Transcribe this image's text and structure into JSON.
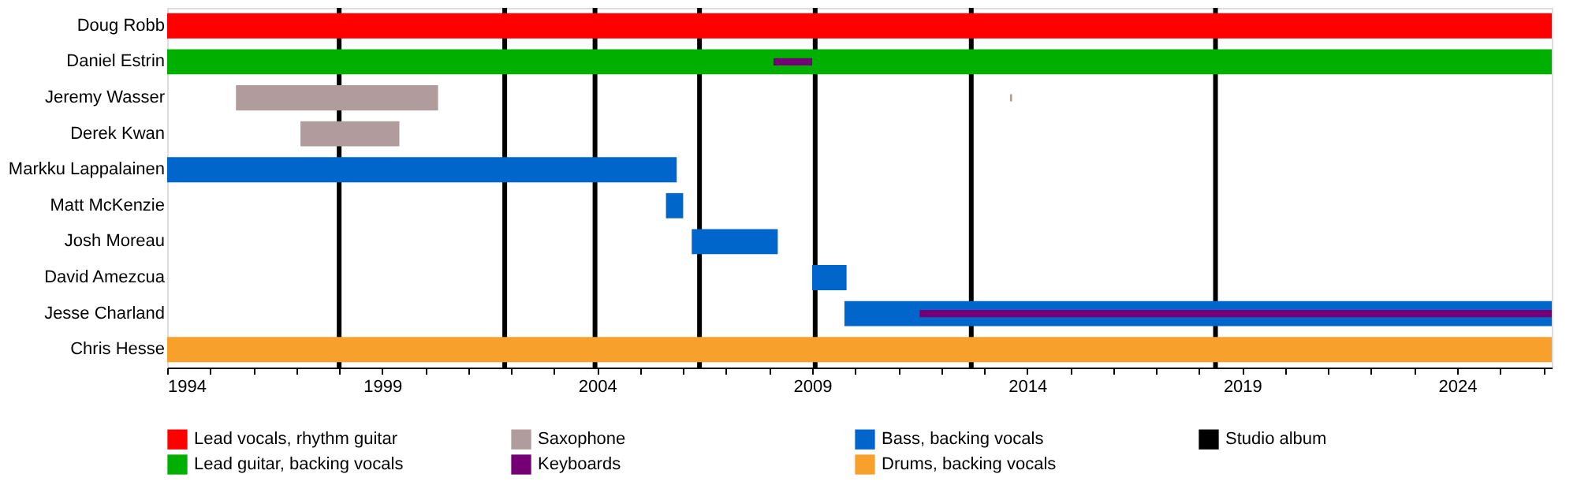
{
  "chart_data": {
    "type": "bar",
    "orientation": "horizontal",
    "categories": [
      "Doug Robb",
      "Daniel Estrin",
      "Jeremy Wasser",
      "Derek Kwan",
      "Markku Lappalainen",
      "Matt McKenzie",
      "Josh Moreau",
      "David Amezcua",
      "Jesse Charland",
      "Chris Hesse"
    ],
    "series": [
      {
        "name": "Lead vocals, rhythm guitar",
        "color": "#ff0000",
        "base": [
          1994,
          null,
          null,
          null,
          null,
          null,
          null,
          null,
          null,
          null
        ],
        "values": [
          32.2,
          null,
          null,
          null,
          null,
          null,
          null,
          null,
          null,
          null
        ]
      },
      {
        "name": "Lead guitar, backing vocals",
        "color": "#00b000",
        "base": [
          null,
          1994,
          null,
          null,
          null,
          null,
          null,
          null,
          null,
          null
        ],
        "values": [
          null,
          32.2,
          null,
          null,
          null,
          null,
          null,
          null,
          null,
          null
        ]
      },
      {
        "name": "Saxophone",
        "color": "#b09c9c",
        "base": [
          null,
          null,
          1995.6,
          1997.1,
          null,
          null,
          null,
          null,
          null,
          null
        ],
        "values": [
          null,
          null,
          4.7,
          2.3,
          null,
          null,
          null,
          null,
          null,
          null
        ]
      },
      {
        "color": "#b09c9c",
        "base": [
          null,
          null,
          2013.6,
          null,
          null,
          null,
          null,
          null,
          null,
          null
        ],
        "values": [
          null,
          null,
          0.05,
          null,
          null,
          null,
          null,
          null,
          null,
          null
        ]
      },
      {
        "name": "Keyboards",
        "color": "#750075",
        "base": [
          null,
          2008.1,
          null,
          null,
          null,
          null,
          null,
          null,
          2011.5,
          null
        ],
        "values": [
          null,
          0.9,
          null,
          null,
          null,
          null,
          null,
          null,
          14.7,
          null
        ]
      },
      {
        "name": "Bass, backing vocals",
        "color": "#0066cc",
        "base": [
          null,
          null,
          null,
          null,
          1994,
          2005.6,
          2006.2,
          2009.0,
          2009.75,
          null
        ],
        "values": [
          null,
          null,
          null,
          null,
          11.85,
          0.4,
          2.0,
          0.8,
          16.45,
          null
        ]
      },
      {
        "name": "Drums, backing vocals",
        "color": "#f7a12c",
        "base": [
          null,
          null,
          null,
          null,
          null,
          null,
          null,
          null,
          null,
          1994
        ],
        "values": [
          null,
          null,
          null,
          null,
          null,
          null,
          null,
          null,
          null,
          32.2
        ]
      }
    ],
    "ref_lines": [
      {
        "axis": "x",
        "value": 1998.0,
        "label": "Studio album",
        "color": "#000000"
      },
      {
        "axis": "x",
        "value": 2001.85,
        "color": "#000000"
      },
      {
        "axis": "x",
        "value": 2003.95,
        "color": "#000000"
      },
      {
        "axis": "x",
        "value": 2006.38,
        "color": "#000000"
      },
      {
        "axis": "x",
        "value": 2009.07,
        "color": "#000000"
      },
      {
        "axis": "x",
        "value": 2012.7,
        "color": "#000000"
      },
      {
        "axis": "x",
        "value": 2018.38,
        "color": "#000000"
      }
    ],
    "xlim": [
      1994,
      2026.2
    ],
    "xticks": [
      1994,
      {
        "value": 1995,
        "label": null
      },
      {
        "value": 1996,
        "label": null
      },
      {
        "value": 1997,
        "label": null
      },
      {
        "value": 1998,
        "label": null
      },
      1999,
      {
        "value": 2000,
        "label": null
      },
      {
        "value": 2001,
        "label": null
      },
      {
        "value": 2002,
        "label": null
      },
      {
        "value": 2003,
        "label": null
      },
      2004,
      {
        "value": 2005,
        "label": null
      },
      {
        "value": 2006,
        "label": null
      },
      {
        "value": 2007,
        "label": null
      },
      {
        "value": 2008,
        "label": null
      },
      2009,
      {
        "value": 2010,
        "label": null
      },
      {
        "value": 2011,
        "label": null
      },
      {
        "value": 2012,
        "label": null
      },
      {
        "value": 2013,
        "label": null
      },
      2014,
      {
        "value": 2015,
        "label": null
      },
      {
        "value": 2016,
        "label": null
      },
      {
        "value": 2017,
        "label": null
      },
      {
        "value": 2018,
        "label": null
      },
      2019,
      {
        "value": 2020,
        "label": null
      },
      {
        "value": 2021,
        "label": null
      },
      {
        "value": 2022,
        "label": null
      },
      {
        "value": 2023,
        "label": null
      },
      2024,
      {
        "value": 2025,
        "label": null
      },
      {
        "value": 2026,
        "label": null
      }
    ],
    "grid": false,
    "legend": "bottom"
  }
}
